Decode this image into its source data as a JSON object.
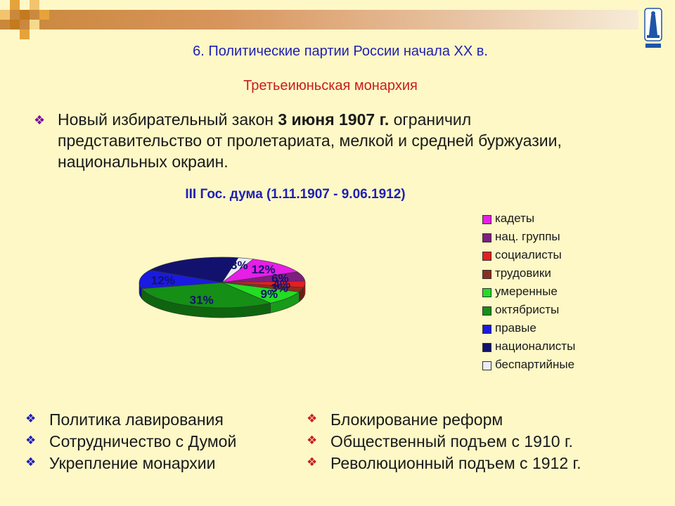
{
  "slide": {
    "heading": "6. Политические партии России начала XX в.",
    "subtitle": "Третьеиюньская монархия",
    "intro": {
      "bullet": "❖",
      "pre": "Новый избирательный закон ",
      "bold": "3 июня 1907 г.",
      "post": " ограничил представительство от пролетариата, мелкой и средней буржуазии, национальных окраин."
    },
    "left_bullets": [
      "Политика лавирования",
      "Сотрудничество с Думой",
      "Укрепление монархии"
    ],
    "right_bullets": [
      "Блокирование реформ",
      "Общественный подъем с 1910 г.",
      "Революционный подъем с 1912 г."
    ],
    "logo_icon": "university-emblem-icon"
  },
  "chart_data": {
    "type": "pie",
    "title": "III Гос. дума (1.11.1907 - 9.06.1912)",
    "legend_position": "right",
    "three_d": true,
    "slices": [
      {
        "name": "кадеты",
        "value": 12,
        "label": "12%",
        "color": "#e61ee6"
      },
      {
        "name": "нац. группы",
        "value": 6,
        "label": "6%",
        "color": "#7f1f7f"
      },
      {
        "name": "социалисты",
        "value": 4,
        "label": "4%",
        "color": "#e61e1e"
      },
      {
        "name": "трудовики",
        "value": 3,
        "label": "3%",
        "color": "#8c2f1e"
      },
      {
        "name": "умеренные",
        "value": 9,
        "label": "9%",
        "color": "#22dd22"
      },
      {
        "name": "октябристы",
        "value": 31,
        "label": "31%",
        "color": "#158f15"
      },
      {
        "name": "правые",
        "value": 12,
        "label": "12%",
        "color": "#1a1ae0"
      },
      {
        "name": "националисты",
        "value": 20,
        "label": "20%",
        "color": "#12126e"
      },
      {
        "name": "беспартийные",
        "value": 3,
        "label": "3%",
        "color": "#ececf6"
      }
    ]
  }
}
